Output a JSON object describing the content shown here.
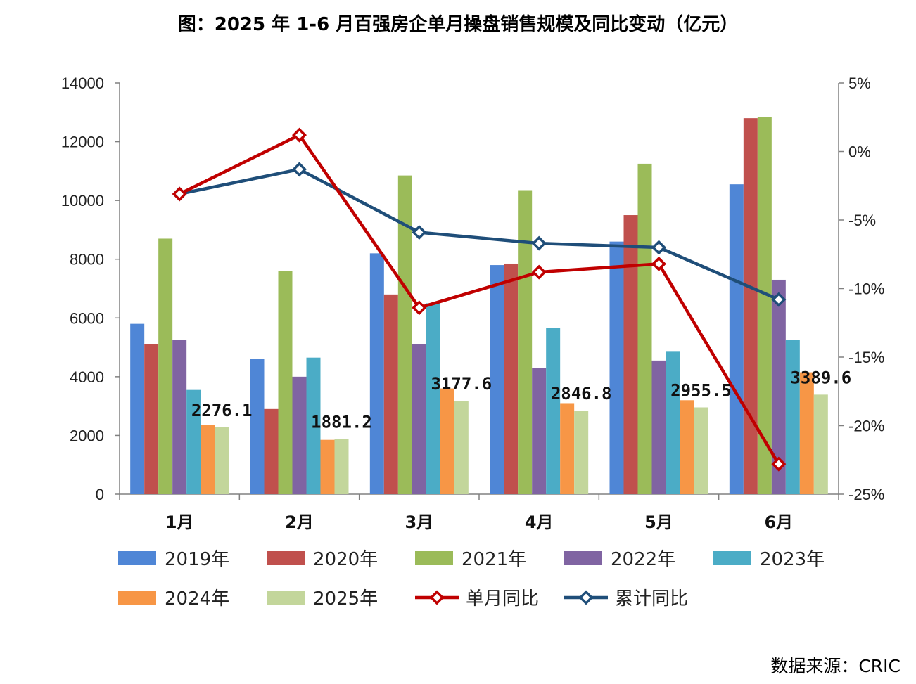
{
  "title": "图：2025 年 1-6 月百强房企单月操盘销售规模及同比变动（亿元）",
  "source": "数据来源：CRIC",
  "colors": {
    "2019年": "#4F86D6",
    "2020年": "#C0504D",
    "2021年": "#9BBB59",
    "2022年": "#8064A2",
    "2023年": "#4BACC6",
    "2024年": "#F79646",
    "2025年": "#C3D69B",
    "单月同比": "#C00000",
    "累计同比": "#1F4E79"
  },
  "chart_data": {
    "type": "bar",
    "title": "图：2025 年 1-6 月百强房企单月操盘销售规模及同比变动（亿元）",
    "categories": [
      "1月",
      "2月",
      "3月",
      "4月",
      "5月",
      "6月"
    ],
    "ylim": [
      0,
      14000
    ],
    "yticks": [
      "0",
      "2000",
      "4000",
      "6000",
      "8000",
      "10000",
      "12000",
      "14000"
    ],
    "y2lim": [
      -25,
      5
    ],
    "y2ticks": [
      "5%",
      "0%",
      "-5%",
      "-10%",
      "-15%",
      "-20%",
      "-25%"
    ],
    "legend_position": "bottom",
    "series": [
      {
        "name": "2019年",
        "type": "bar",
        "values": [
          5800,
          4600,
          8200,
          7800,
          8600,
          10550
        ]
      },
      {
        "name": "2020年",
        "type": "bar",
        "values": [
          5100,
          2900,
          6800,
          7850,
          9500,
          12800
        ]
      },
      {
        "name": "2021年",
        "type": "bar",
        "values": [
          8700,
          7600,
          10850,
          10350,
          11250,
          12850
        ]
      },
      {
        "name": "2022年",
        "type": "bar",
        "values": [
          5250,
          4000,
          5100,
          4300,
          4550,
          7300
        ]
      },
      {
        "name": "2023年",
        "type": "bar",
        "values": [
          3550,
          4650,
          6500,
          5650,
          4850,
          5250
        ]
      },
      {
        "name": "2024年",
        "type": "bar",
        "values": [
          2350,
          1850,
          3600,
          3100,
          3200,
          4150
        ]
      },
      {
        "name": "2025年",
        "type": "bar",
        "values": [
          2276.1,
          1881.2,
          3177.6,
          2846.8,
          2955.5,
          3389.6
        ]
      },
      {
        "name": "单月同比",
        "type": "line",
        "axis": "right",
        "values": [
          -3.1,
          1.2,
          -11.4,
          -8.8,
          -8.2,
          -22.8
        ]
      },
      {
        "name": "累计同比",
        "type": "line",
        "axis": "right",
        "values": [
          -3.1,
          -1.3,
          -5.9,
          -6.7,
          -7.0,
          -10.8
        ]
      }
    ],
    "data_labels": [
      "2276.1",
      "1881.2",
      "3177.6",
      "2846.8",
      "2955.5",
      "3389.6"
    ]
  }
}
